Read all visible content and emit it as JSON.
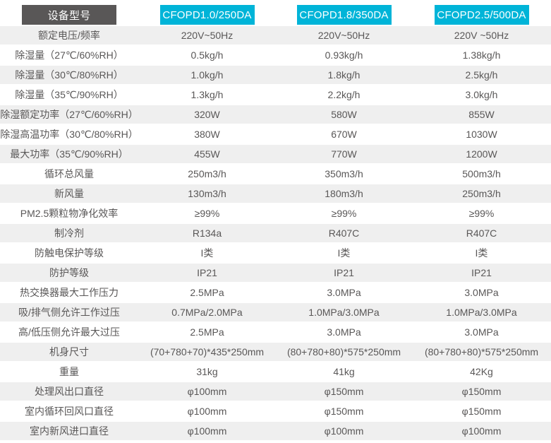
{
  "table": {
    "header": {
      "label": "设备型号",
      "models": [
        "CFOPD1.0/250DA",
        "CFOPD1.8/350DA",
        "CFOPD2.5/500DA"
      ]
    },
    "rows": [
      {
        "label": "额定电压/频率",
        "values": [
          "220V~50Hz",
          "220V~50Hz",
          "220V ~50Hz"
        ]
      },
      {
        "label": "除湿量（27℃/60%RH）",
        "values": [
          "0.5kg/h",
          "0.93kg/h",
          "1.38kg/h"
        ]
      },
      {
        "label": "除湿量（30℃/80%RH）",
        "values": [
          "1.0kg/h",
          "1.8kg/h",
          "2.5kg/h"
        ]
      },
      {
        "label": "除湿量（35℃/90%RH）",
        "values": [
          "1.3kg/h",
          "2.2kg/h",
          "3.0kg/h"
        ]
      },
      {
        "label": "除湿额定功率（27℃/60%RH）",
        "values": [
          "320W",
          "580W",
          "855W"
        ]
      },
      {
        "label": "除湿高温功率（30℃/80%RH）",
        "values": [
          "380W",
          "670W",
          "1030W"
        ]
      },
      {
        "label": "最大功率（35℃/90%RH）",
        "values": [
          "455W",
          "770W",
          "1200W"
        ]
      },
      {
        "label": "循环总风量",
        "values": [
          "250m3/h",
          "350m3/h",
          "500m3/h"
        ]
      },
      {
        "label": "新风量",
        "values": [
          "130m3/h",
          "180m3/h",
          "250m3/h"
        ]
      },
      {
        "label": "PM2.5颗粒物净化效率",
        "values": [
          "≥99%",
          "≥99%",
          "≥99%"
        ]
      },
      {
        "label": "制冷剂",
        "values": [
          "R134a",
          "R407C",
          "R407C"
        ]
      },
      {
        "label": "防触电保护等级",
        "values": [
          "I类",
          "I类",
          "I类"
        ]
      },
      {
        "label": "防护等级",
        "values": [
          "IP21",
          "IP21",
          "IP21"
        ]
      },
      {
        "label": "热交换器最大工作压力",
        "values": [
          "2.5MPa",
          "3.0MPa",
          "3.0MPa"
        ]
      },
      {
        "label": "吸/排气侧允许工作过压",
        "values": [
          "0.7MPa/2.0MPa",
          "1.0MPa/3.0MPa",
          "1.0MPa/3.0MPa"
        ]
      },
      {
        "label": "高/低压侧允许最大过压",
        "values": [
          "2.5MPa",
          "3.0MPa",
          "3.0MPa"
        ]
      },
      {
        "label": "机身尺寸",
        "values": [
          "(70+780+70)*435*250mm",
          "(80+780+80)*575*250mm",
          "(80+780+80)*575*250mm"
        ]
      },
      {
        "label": "重量",
        "values": [
          "31kg",
          "41kg",
          "42Kg"
        ]
      },
      {
        "label": "处理风出口直径",
        "values": [
          "φ100mm",
          "φ150mm",
          "φ150mm"
        ]
      },
      {
        "label": "室内循环回风口直径",
        "values": [
          "φ100mm",
          "φ150mm",
          "φ150mm"
        ]
      },
      {
        "label": "室内新风进口直径",
        "values": [
          "φ100mm",
          "φ100mm",
          "φ100mm"
        ]
      }
    ],
    "colors": {
      "accent_cyan": "#00b4d8",
      "header_dark": "#595757",
      "row_stripe": "#efefef",
      "text": "#595757"
    }
  }
}
